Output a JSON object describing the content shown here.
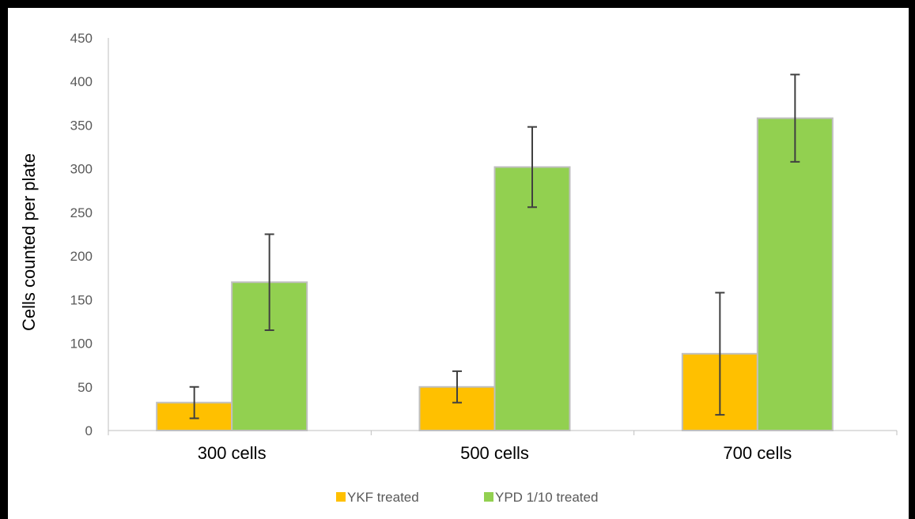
{
  "chart_data": {
    "type": "bar",
    "title": "",
    "xlabel": "",
    "ylabel": "Cells counted per plate",
    "ylim": [
      0,
      450
    ],
    "yticks": [
      0,
      50,
      100,
      150,
      200,
      250,
      300,
      350,
      400,
      450
    ],
    "categories": [
      "300 cells",
      "500 cells",
      "700 cells"
    ],
    "series": [
      {
        "name": "YKF treated",
        "color": "#FFC000",
        "values": [
          32,
          50,
          88
        ],
        "error": [
          18,
          18,
          70
        ]
      },
      {
        "name": "YPD 1/10 treated",
        "color": "#92D050",
        "values": [
          170,
          302,
          358
        ],
        "error": [
          55,
          46,
          50
        ]
      }
    ],
    "error_bars": true,
    "grid": false,
    "legend_position": "bottom"
  }
}
